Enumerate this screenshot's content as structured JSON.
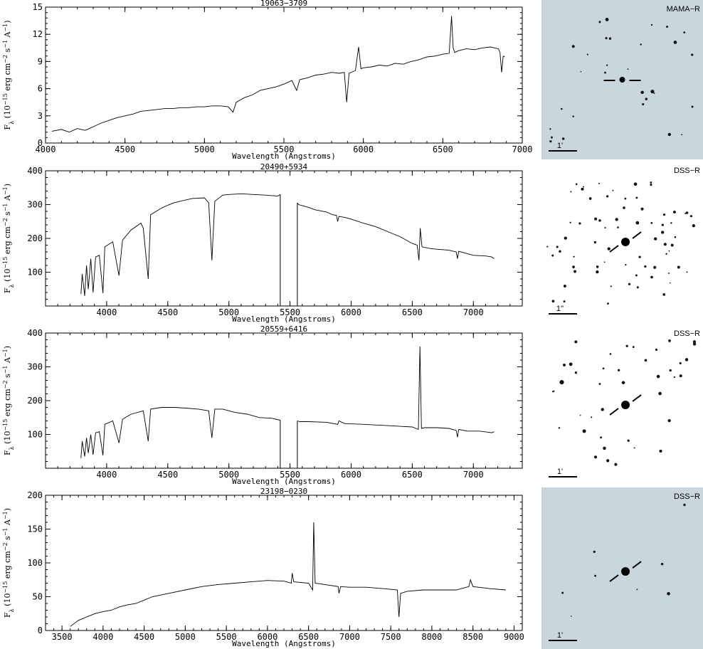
{
  "chart_data": [
    {
      "type": "line",
      "title": "19063−3709",
      "xlabel": "Wavelength (Angstroms)",
      "ylabel_parts": [
        "F",
        "λ",
        " (10",
        "−15",
        " erg cm",
        "−2",
        " s",
        "−1",
        " A",
        "−1",
        ")"
      ],
      "xlim": [
        4000,
        7000
      ],
      "ylim": [
        0,
        15
      ],
      "xticks": [
        4000,
        4500,
        5000,
        5500,
        6000,
        6500,
        7000
      ],
      "yticks": [
        0,
        3,
        6,
        9,
        12,
        15
      ],
      "series": [
        {
          "x": [
            4040,
            4100,
            4150,
            4200,
            4250,
            4300,
            4350,
            4400,
            4450,
            4500,
            4550,
            4600,
            4650,
            4700,
            4750,
            4800,
            4850,
            4900,
            4950,
            5000,
            5050,
            5100,
            5150,
            5180,
            5200,
            5250,
            5300,
            5350,
            5400,
            5450,
            5500,
            5550,
            5580,
            5600,
            5650,
            5700,
            5750,
            5800,
            5850,
            5880,
            5895,
            5910,
            5950,
            5970,
            5985,
            6000,
            6050,
            6100,
            6150,
            6200,
            6250,
            6300,
            6350,
            6400,
            6450,
            6500,
            6540,
            6555,
            6565,
            6575,
            6600,
            6650,
            6700,
            6750,
            6800,
            6850,
            6860,
            6870,
            6880,
            6890
          ],
          "y": [
            1.3,
            1.5,
            1.2,
            1.6,
            1.4,
            1.8,
            2.2,
            2.5,
            2.8,
            3.0,
            3.2,
            3.5,
            3.6,
            3.7,
            3.8,
            3.8,
            3.9,
            3.9,
            4.0,
            4.0,
            4.1,
            4.1,
            4.0,
            3.4,
            4.5,
            5.0,
            5.3,
            5.8,
            6.0,
            6.2,
            6.5,
            6.9,
            5.8,
            7.0,
            7.2,
            7.5,
            7.6,
            7.8,
            7.7,
            7.8,
            4.5,
            7.7,
            8.0,
            10.6,
            8.2,
            8.3,
            8.4,
            8.6,
            8.5,
            8.8,
            8.7,
            9.0,
            9.2,
            9.5,
            9.6,
            9.8,
            9.9,
            14.0,
            10.5,
            10.0,
            10.2,
            10.4,
            10.3,
            10.5,
            10.6,
            10.4,
            10.0,
            7.8,
            9.6,
            9.5
          ]
        }
      ]
    },
    {
      "type": "line",
      "title": "20490+5934",
      "xlabel": "Wavelength (Angstroms)",
      "ylabel_parts": [
        "F",
        "λ",
        " (10",
        "−15",
        " erg cm",
        "−2",
        " s",
        "−1",
        " A",
        "−1",
        ")"
      ],
      "xlim": [
        3500,
        7400
      ],
      "ylim": [
        0,
        400
      ],
      "xticks": [
        4000,
        4500,
        5000,
        5500,
        6000,
        6500,
        7000
      ],
      "yticks": [
        100,
        200,
        300,
        400
      ],
      "series": [
        {
          "x": [
            3790,
            3800,
            3820,
            3835,
            3850,
            3870,
            3889,
            3910,
            3940,
            3970,
            3985,
            4050,
            4101,
            4130,
            4200,
            4280,
            4300,
            4340,
            4360,
            4450,
            4500,
            4550,
            4600,
            4700,
            4800,
            4835,
            4861,
            4885,
            4950,
            5000,
            5100,
            5200,
            5300,
            5400,
            5420
          ],
          "y": [
            35,
            95,
            30,
            120,
            50,
            140,
            40,
            145,
            150,
            38,
            175,
            190,
            90,
            195,
            225,
            245,
            230,
            80,
            270,
            290,
            298,
            305,
            310,
            318,
            320,
            305,
            135,
            310,
            328,
            330,
            332,
            330,
            328,
            325,
            330
          ]
        },
        {
          "x": [
            5560,
            5570,
            5650,
            5700,
            5800,
            5850,
            5880,
            5890,
            5900,
            5950,
            6000,
            6100,
            6200,
            6300,
            6400,
            6500,
            6540,
            6555,
            6565,
            6580,
            6650,
            6700,
            6800,
            6860,
            6870,
            6880,
            6950,
            7000,
            7100,
            7150,
            7170
          ],
          "y": [
            305,
            300,
            292,
            285,
            278,
            270,
            268,
            250,
            265,
            262,
            257,
            245,
            235,
            220,
            205,
            185,
            180,
            135,
            230,
            175,
            170,
            168,
            165,
            160,
            140,
            162,
            155,
            150,
            148,
            145,
            140
          ]
        }
      ]
    },
    {
      "type": "line",
      "title": "20559+6416",
      "xlabel": "Wavelength (Angstroms)",
      "ylabel_parts": [
        "F",
        "λ",
        " (10",
        "−15",
        " erg cm",
        "−2",
        " s",
        "−1",
        " A",
        "−1",
        ")"
      ],
      "xlim": [
        3500,
        7400
      ],
      "ylim": [
        0,
        400
      ],
      "xticks": [
        4000,
        4500,
        5000,
        5500,
        6000,
        6500,
        7000
      ],
      "yticks": [
        100,
        200,
        300,
        400
      ],
      "series": [
        {
          "x": [
            3790,
            3800,
            3820,
            3835,
            3850,
            3870,
            3889,
            3910,
            3940,
            3970,
            3985,
            4050,
            4101,
            4130,
            4200,
            4300,
            4340,
            4360,
            4450,
            4550,
            4650,
            4750,
            4835,
            4861,
            4885,
            4950,
            5050,
            5150,
            5250,
            5350,
            5420
          ],
          "y": [
            30,
            80,
            35,
            90,
            45,
            100,
            40,
            105,
            108,
            38,
            130,
            140,
            75,
            145,
            160,
            170,
            80,
            175,
            180,
            180,
            178,
            175,
            170,
            90,
            175,
            175,
            165,
            160,
            150,
            148,
            142
          ]
        },
        {
          "x": [
            5560,
            5580,
            5650,
            5800,
            5890,
            5900,
            5950,
            6100,
            6200,
            6300,
            6400,
            6500,
            6550,
            6563,
            6575,
            6600,
            6700,
            6800,
            6860,
            6870,
            6880,
            6950,
            7050,
            7150,
            7170
          ],
          "y": [
            140,
            138,
            138,
            136,
            130,
            140,
            132,
            130,
            128,
            126,
            124,
            122,
            115,
            360,
            118,
            120,
            120,
            118,
            112,
            92,
            115,
            110,
            110,
            105,
            108
          ]
        }
      ]
    },
    {
      "type": "line",
      "title": "23198−0230",
      "xlabel": "Wavelength (Angstroms)",
      "ylabel_parts": [
        "F",
        "λ",
        " (10",
        "−15",
        " erg cm",
        "−2",
        " s",
        "−1",
        " A",
        "−1",
        ")"
      ],
      "xlim": [
        3300,
        9100
      ],
      "ylim": [
        0,
        200
      ],
      "xticks": [
        3500,
        4000,
        4500,
        5000,
        5500,
        6000,
        6500,
        7000,
        7500,
        8000,
        8500,
        9000
      ],
      "yticks": [
        0,
        50,
        100,
        150,
        200
      ],
      "series": [
        {
          "x": [
            3600,
            3700,
            3800,
            3900,
            4000,
            4100,
            4200,
            4300,
            4400,
            4500,
            4600,
            4800,
            5000,
            5200,
            5400,
            5600,
            5800,
            6000,
            6200,
            6290,
            6300,
            6320,
            6500,
            6550,
            6563,
            6580,
            6700,
            6860,
            6870,
            6890,
            7000,
            7200,
            7400,
            7580,
            7600,
            7620,
            7700,
            7900,
            8100,
            8300,
            8450,
            8470,
            8500,
            8700,
            8900
          ],
          "y": [
            6,
            15,
            20,
            25,
            28,
            30,
            35,
            38,
            40,
            45,
            50,
            55,
            60,
            65,
            68,
            70,
            72,
            74,
            73,
            70,
            85,
            72,
            70,
            60,
            160,
            70,
            68,
            65,
            55,
            65,
            64,
            64,
            62,
            60,
            20,
            55,
            58,
            60,
            60,
            60,
            65,
            75,
            65,
            62,
            60
          ]
        }
      ]
    }
  ],
  "thumbnails": [
    {
      "label": "MAMA−R",
      "scale_label": "1'",
      "bg": "#c9d6de"
    },
    {
      "label": "DSS−R",
      "scale_label": "1''",
      "bg": "#ffffff"
    },
    {
      "label": "DSS−R",
      "scale_label": "1'",
      "bg": "#ffffff"
    },
    {
      "label": "DSS−R",
      "scale_label": "1'",
      "bg": "#c9d6de"
    }
  ]
}
